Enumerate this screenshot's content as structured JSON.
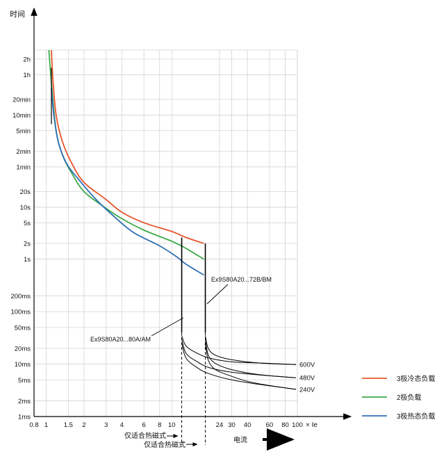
{
  "chart_data": {
    "type": "line",
    "title": "",
    "ylabel": "时间",
    "xlabel": "× Ie",
    "x_scale": "log",
    "y_scale": "log",
    "xlim": [
      0.8,
      100
    ],
    "x_ticks": [
      {
        "v": 0.8,
        "label": "0.8"
      },
      {
        "v": 1,
        "label": "1"
      },
      {
        "v": 1.5,
        "label": "1.5"
      },
      {
        "v": 2,
        "label": "2"
      },
      {
        "v": 3,
        "label": "3"
      },
      {
        "v": 4,
        "label": "4"
      },
      {
        "v": 6,
        "label": "6"
      },
      {
        "v": 8,
        "label": "8"
      },
      {
        "v": 10,
        "label": "10"
      },
      {
        "v": 24,
        "label": "24"
      },
      {
        "v": 30,
        "label": "30"
      },
      {
        "v": 40,
        "label": "40"
      },
      {
        "v": 60,
        "label": "60"
      },
      {
        "v": 80,
        "label": "80"
      },
      {
        "v": 100,
        "label": "100"
      }
    ],
    "y_ticks": [
      {
        "v": 7200,
        "label": "2h"
      },
      {
        "v": 3600,
        "label": "1h"
      },
      {
        "v": 1200,
        "label": "20min"
      },
      {
        "v": 600,
        "label": "10min"
      },
      {
        "v": 300,
        "label": "5min"
      },
      {
        "v": 120,
        "label": "2min"
      },
      {
        "v": 60,
        "label": "1min"
      },
      {
        "v": 20,
        "label": "20s"
      },
      {
        "v": 10,
        "label": "10s"
      },
      {
        "v": 5,
        "label": "5s"
      },
      {
        "v": 2,
        "label": "2s"
      },
      {
        "v": 1,
        "label": "1s"
      },
      {
        "v": 0.2,
        "label": "200ms"
      },
      {
        "v": 0.1,
        "label": "100ms"
      },
      {
        "v": 0.05,
        "label": "50ms"
      },
      {
        "v": 0.02,
        "label": "20ms"
      },
      {
        "v": 0.01,
        "label": "10ms"
      },
      {
        "v": 0.005,
        "label": "5ms"
      },
      {
        "v": 0.002,
        "label": "2ms"
      },
      {
        "v": 0.001,
        "label": "1ms"
      }
    ],
    "grid": true,
    "legend_position": "right",
    "series": [
      {
        "name": "3极冷态负载",
        "color": "#E8542A",
        "points": [
          [
            1.1,
            12000
          ],
          [
            1.13,
            3000
          ],
          [
            1.2,
            600
          ],
          [
            1.35,
            180
          ],
          [
            1.6,
            70
          ],
          [
            2,
            30
          ],
          [
            3,
            14
          ],
          [
            4,
            8
          ],
          [
            6,
            5
          ],
          [
            10,
            3.4
          ],
          [
            13,
            2.6
          ],
          [
            18,
            2.0
          ]
        ]
      },
      {
        "name": "2极负载",
        "color": "#3DAA4A",
        "points": [
          [
            1.05,
            12000
          ],
          [
            1.1,
            2500
          ],
          [
            1.2,
            300
          ],
          [
            1.35,
            100
          ],
          [
            1.6,
            45
          ],
          [
            2,
            20
          ],
          [
            3,
            9.5
          ],
          [
            4,
            6
          ],
          [
            6,
            3.6
          ],
          [
            10,
            2.2
          ],
          [
            13,
            1.6
          ],
          [
            18,
            1.0
          ]
        ]
      },
      {
        "name": "3极热态负载",
        "color": "#2F6FB5",
        "points": [
          [
            1.1,
            2000
          ],
          [
            1.15,
            600
          ],
          [
            1.25,
            180
          ],
          [
            1.45,
            70
          ],
          [
            1.8,
            35
          ],
          [
            2.5,
            14
          ],
          [
            3.5,
            6.5
          ],
          [
            5,
            3.2
          ],
          [
            8,
            1.8
          ],
          [
            11,
            1.1
          ],
          [
            13,
            0.8
          ],
          [
            18,
            0.5
          ]
        ]
      }
    ],
    "breakers": [
      {
        "label": "Ex9S80A20...80A/AM",
        "x": 12,
        "t_top": 2.6,
        "t_bottom": 0.04
      },
      {
        "label": "Ex9S80A20...72B/BM",
        "x": 18.5,
        "t_top": 2.0,
        "t_bottom": 0.04
      }
    ],
    "voltage_curves": [
      {
        "label": "600V",
        "x": [
          12,
          13,
          16,
          20,
          30,
          50,
          100
        ],
        "y": [
          0.035,
          0.022,
          0.016,
          0.013,
          0.011,
          0.0105,
          0.0098
        ]
      },
      {
        "label": "480V",
        "x": [
          12,
          13,
          16,
          20,
          30,
          50,
          100
        ],
        "y": [
          0.03,
          0.016,
          0.011,
          0.0085,
          0.007,
          0.0062,
          0.0055
        ]
      },
      {
        "label": "240V",
        "x": [
          12,
          13,
          16,
          20,
          30,
          50,
          100
        ],
        "y": [
          0.025,
          0.013,
          0.0085,
          0.0065,
          0.005,
          0.0041,
          0.0033
        ]
      },
      {
        "label": "600V",
        "x": [
          18.5,
          19.5,
          22,
          28,
          40,
          60,
          100
        ],
        "y": [
          0.035,
          0.02,
          0.015,
          0.0125,
          0.011,
          0.0102,
          0.0098
        ]
      },
      {
        "label": "480V",
        "x": [
          18.5,
          19.5,
          22,
          28,
          40,
          60,
          100
        ],
        "y": [
          0.03,
          0.015,
          0.0105,
          0.0082,
          0.0068,
          0.006,
          0.0055
        ]
      },
      {
        "label": "240V",
        "x": [
          18.5,
          19.5,
          22,
          28,
          40,
          60,
          100
        ],
        "y": [
          0.025,
          0.012,
          0.008,
          0.0062,
          0.0047,
          0.0039,
          0.0033
        ]
      }
    ],
    "voltage_labels": [
      "600V",
      "480V",
      "240V"
    ],
    "annotations": {
      "breaker_a": "Ex9S80A20...80A/AM",
      "breaker_b": "Ex9S80A20...72B/BM",
      "magnetic_a": "仅适合热磁式",
      "magnetic_b": "仅适合热磁式",
      "current": "电流"
    }
  }
}
